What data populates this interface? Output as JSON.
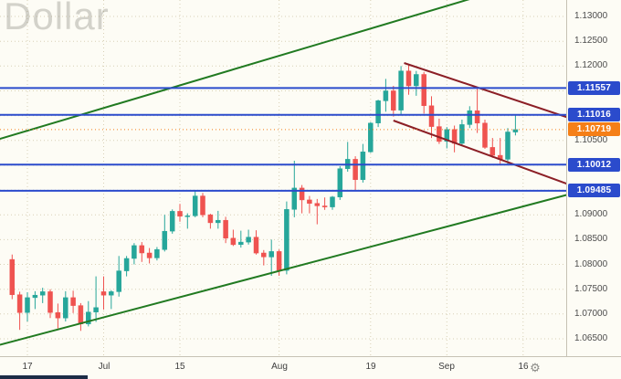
{
  "watermark": "Dollar",
  "bottom_bar": {
    "settings_icon_glyph": "⚙"
  },
  "chart_data": {
    "type": "candlestick",
    "symbol_watermark": "Dollar",
    "colors": {
      "up": "#26a69a",
      "down": "#ef5350",
      "level_blue": "#2b4bcc",
      "last_price_orange": "#f57f17",
      "channel_green": "#217a21",
      "wedge_maroon": "#8c1f26",
      "grid": "#d8d0b6",
      "background": "#fdfcf5"
    },
    "price_axis": {
      "min": 1.065,
      "max": 1.13,
      "step": 0.005,
      "gridlines": [
        1.065,
        1.07,
        1.075,
        1.08,
        1.085,
        1.09,
        1.095,
        1.1,
        1.105,
        1.11,
        1.115,
        1.12,
        1.125,
        1.13
      ],
      "visible_labels": [
        "1.13000",
        "1.12500",
        "1.12000",
        "1.10500",
        "1.09000",
        "1.08500",
        "1.08000",
        "1.07500",
        "1.07000",
        "1.06500"
      ]
    },
    "time_axis": {
      "ticks": [
        {
          "label": "17",
          "i": 0
        },
        {
          "label": "Jul",
          "i": 10
        },
        {
          "label": "15",
          "i": 20
        },
        {
          "label": "Aug",
          "i": 33
        },
        {
          "label": "19",
          "i": 45
        },
        {
          "label": "Sep",
          "i": 55
        },
        {
          "label": "16",
          "i": 65
        }
      ]
    },
    "levels": [
      {
        "label": "1.11557",
        "price": 1.11557
      },
      {
        "label": "1.11016",
        "price": 1.11016
      },
      {
        "label": "1.10012",
        "price": 1.10012
      },
      {
        "label": "1.09485",
        "price": 1.09485
      }
    ],
    "last_price": {
      "label": "1.10719",
      "price": 1.10719
    },
    "trendlines": [
      {
        "name": "channel-upper",
        "i1": -3.6,
        "p1": 1.1053,
        "i2": 58,
        "p2": 1.1335,
        "color_key": "channel_green"
      },
      {
        "name": "channel-lower",
        "i1": -3.6,
        "p1": 1.0638,
        "i2": 70.7,
        "p2": 1.094,
        "color_key": "channel_green"
      },
      {
        "name": "wedge-upper",
        "i1": 49.4,
        "p1": 1.1206,
        "i2": 70.7,
        "p2": 1.1097,
        "color_key": "wedge_maroon"
      },
      {
        "name": "wedge-lower",
        "i1": 48.0,
        "p1": 1.109,
        "i2": 70.7,
        "p2": 1.0963,
        "color_key": "wedge_maroon"
      }
    ],
    "first_candle_i": -2,
    "candles": [
      [
        1.081,
        1.082,
        1.073,
        1.0739
      ],
      [
        1.0739,
        1.0745,
        1.0668,
        1.0703
      ],
      [
        1.0703,
        1.0744,
        1.0685,
        1.0733
      ],
      [
        1.0733,
        1.0746,
        1.071,
        1.0738
      ],
      [
        1.0738,
        1.0753,
        1.0722,
        1.0745
      ],
      [
        1.0745,
        1.075,
        1.0692,
        1.0703
      ],
      [
        1.0703,
        1.0721,
        1.0671,
        1.0692
      ],
      [
        1.0692,
        1.0746,
        1.0685,
        1.0733
      ],
      [
        1.0733,
        1.0747,
        1.0702,
        1.0717
      ],
      [
        1.0717,
        1.0722,
        1.0666,
        1.068
      ],
      [
        1.068,
        1.0726,
        1.0675,
        1.0704
      ],
      [
        1.0704,
        1.0776,
        1.0684,
        1.0713
      ],
      [
        1.0745,
        1.0776,
        1.0709,
        1.0738
      ],
      [
        1.0738,
        1.0748,
        1.071,
        1.0745
      ],
      [
        1.0745,
        1.0817,
        1.0735,
        1.0787
      ],
      [
        1.0787,
        1.0817,
        1.0776,
        1.0812
      ],
      [
        1.0812,
        1.0843,
        1.08,
        1.0838
      ],
      [
        1.0838,
        1.0845,
        1.0805,
        1.0823
      ],
      [
        1.0823,
        1.0833,
        1.0802,
        1.0813
      ],
      [
        1.0813,
        1.0835,
        1.0808,
        1.083
      ],
      [
        1.083,
        1.09,
        1.0826,
        1.0867
      ],
      [
        1.0867,
        1.0911,
        1.0862,
        1.0907
      ],
      [
        1.0907,
        1.0922,
        1.0886,
        1.0897
      ],
      [
        1.0897,
        1.0903,
        1.0872,
        1.0898
      ],
      [
        1.0898,
        1.0948,
        1.0895,
        1.0938
      ],
      [
        1.0938,
        1.0944,
        1.0895,
        1.09
      ],
      [
        1.09,
        1.0902,
        1.0872,
        1.0884
      ],
      [
        1.0884,
        1.0908,
        1.0872,
        1.0889
      ],
      [
        1.0889,
        1.0896,
        1.0843,
        1.0853
      ],
      [
        1.0853,
        1.087,
        1.0837,
        1.084
      ],
      [
        1.084,
        1.0868,
        1.0834,
        1.0845
      ],
      [
        1.0845,
        1.087,
        1.084,
        1.0855
      ],
      [
        1.0855,
        1.0869,
        1.082,
        1.0823
      ],
      [
        1.0823,
        1.0829,
        1.0798,
        1.0815
      ],
      [
        1.0815,
        1.085,
        1.0777,
        1.0826
      ],
      [
        1.0826,
        1.083,
        1.0777,
        1.0788
      ],
      [
        1.0788,
        1.0927,
        1.078,
        1.0911
      ],
      [
        1.0911,
        1.1009,
        1.0895,
        1.0954
      ],
      [
        1.0954,
        1.096,
        1.0903,
        1.093
      ],
      [
        1.093,
        1.0938,
        1.0903,
        1.0923
      ],
      [
        1.0923,
        1.0932,
        1.0881,
        1.0918
      ],
      [
        1.0918,
        1.0935,
        1.091,
        1.0916
      ],
      [
        1.0916,
        1.0938,
        1.091,
        1.0936
      ],
      [
        1.0936,
        1.0998,
        1.093,
        1.0993
      ],
      [
        1.0993,
        1.1047,
        1.0987,
        1.1012
      ],
      [
        1.1012,
        1.1018,
        1.095,
        1.0971
      ],
      [
        1.0971,
        1.1043,
        1.0965,
        1.1027
      ],
      [
        1.1027,
        1.1087,
        1.1025,
        1.1085
      ],
      [
        1.1085,
        1.1132,
        1.1077,
        1.113
      ],
      [
        1.113,
        1.1174,
        1.1108,
        1.115
      ],
      [
        1.115,
        1.116,
        1.1098,
        1.1111
      ],
      [
        1.1111,
        1.12,
        1.1101,
        1.119
      ],
      [
        1.119,
        1.1202,
        1.1142,
        1.116
      ],
      [
        1.116,
        1.119,
        1.114,
        1.1183
      ],
      [
        1.1183,
        1.1188,
        1.1104,
        1.112
      ],
      [
        1.112,
        1.1139,
        1.1055,
        1.1078
      ],
      [
        1.1078,
        1.1094,
        1.1043,
        1.1048
      ],
      [
        1.1048,
        1.1077,
        1.1034,
        1.1072
      ],
      [
        1.1072,
        1.108,
        1.1026,
        1.1044
      ],
      [
        1.1044,
        1.1092,
        1.104,
        1.1082
      ],
      [
        1.1082,
        1.1119,
        1.1075,
        1.111
      ],
      [
        1.111,
        1.1155,
        1.1065,
        1.1085
      ],
      [
        1.1085,
        1.1092,
        1.1033,
        1.1036
      ],
      [
        1.1036,
        1.1055,
        1.1015,
        1.102
      ],
      [
        1.102,
        1.1055,
        1.1002,
        1.1012
      ],
      [
        1.1012,
        1.1075,
        1.1001,
        1.1067
      ],
      [
        1.1067,
        1.1102,
        1.106,
        1.10719
      ]
    ]
  }
}
